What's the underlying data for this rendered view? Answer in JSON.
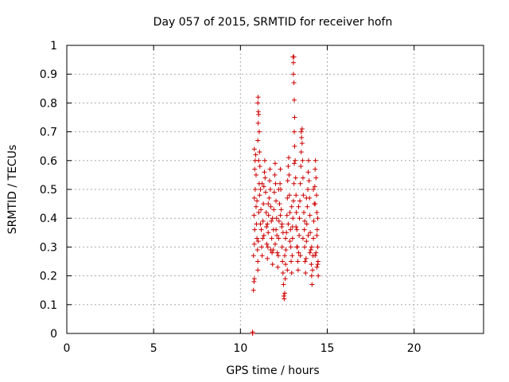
{
  "chart_data": {
    "type": "scatter",
    "title": "Day 057 of 2015, SRMTID for receiver hofn",
    "xlabel": "GPS time / hours",
    "ylabel": "SRMTID / TECUs",
    "xlim": [
      0,
      24
    ],
    "ylim": [
      0,
      1
    ],
    "xticks": [
      "0",
      "5",
      "10",
      "15",
      "20"
    ],
    "yticks": [
      "0",
      "0.1",
      "0.2",
      "0.3",
      "0.4",
      "0.5",
      "0.6",
      "0.7",
      "0.8",
      "0.9",
      "1"
    ],
    "grid": true,
    "marker": "+",
    "color": "#cc0000",
    "series": [
      {
        "points": [
          [
            10.7,
            0.0
          ],
          [
            10.7,
            0.005
          ],
          [
            10.75,
            0.15
          ],
          [
            10.78,
            0.18
          ],
          [
            10.8,
            0.19
          ],
          [
            10.75,
            0.27
          ],
          [
            10.8,
            0.31
          ],
          [
            10.82,
            0.36
          ],
          [
            10.78,
            0.41
          ],
          [
            10.8,
            0.47
          ],
          [
            10.82,
            0.57
          ],
          [
            10.85,
            0.6
          ],
          [
            10.8,
            0.64
          ],
          [
            10.88,
            0.62
          ],
          [
            10.9,
            0.55
          ],
          [
            10.85,
            0.5
          ],
          [
            10.9,
            0.44
          ],
          [
            10.92,
            0.38
          ],
          [
            10.95,
            0.33
          ],
          [
            10.98,
            0.29
          ],
          [
            11.0,
            0.25
          ],
          [
            11.0,
            0.22
          ],
          [
            11.02,
            0.32
          ],
          [
            11.05,
            0.42
          ],
          [
            11.08,
            0.52
          ],
          [
            11.1,
            0.48
          ],
          [
            11.05,
            0.6
          ],
          [
            11.0,
            0.67
          ],
          [
            11.02,
            0.73
          ],
          [
            11.03,
            0.77
          ],
          [
            11.0,
            0.8
          ],
          [
            11.02,
            0.82
          ],
          [
            11.05,
            0.76
          ],
          [
            11.08,
            0.7
          ],
          [
            11.1,
            0.63
          ],
          [
            11.12,
            0.58
          ],
          [
            11.15,
            0.5
          ],
          [
            11.18,
            0.43
          ],
          [
            11.2,
            0.36
          ],
          [
            11.22,
            0.3
          ],
          [
            11.25,
            0.27
          ],
          [
            11.28,
            0.33
          ],
          [
            11.3,
            0.39
          ],
          [
            11.32,
            0.45
          ],
          [
            11.35,
            0.51
          ],
          [
            11.38,
            0.56
          ],
          [
            11.4,
            0.6
          ],
          [
            11.42,
            0.54
          ],
          [
            11.45,
            0.49
          ],
          [
            11.48,
            0.42
          ],
          [
            11.5,
            0.37
          ],
          [
            11.52,
            0.31
          ],
          [
            11.55,
            0.26
          ],
          [
            11.58,
            0.3
          ],
          [
            11.6,
            0.35
          ],
          [
            11.62,
            0.41
          ],
          [
            11.65,
            0.47
          ],
          [
            11.68,
            0.53
          ],
          [
            11.7,
            0.57
          ],
          [
            11.72,
            0.5
          ],
          [
            11.75,
            0.44
          ],
          [
            11.78,
            0.39
          ],
          [
            11.8,
            0.33
          ],
          [
            11.82,
            0.28
          ],
          [
            11.85,
            0.24
          ],
          [
            11.88,
            0.29
          ],
          [
            11.9,
            0.36
          ],
          [
            11.92,
            0.43
          ],
          [
            11.95,
            0.49
          ],
          [
            11.98,
            0.55
          ],
          [
            12.0,
            0.59
          ],
          [
            12.02,
            0.52
          ],
          [
            12.05,
            0.46
          ],
          [
            12.08,
            0.4
          ],
          [
            12.1,
            0.34
          ],
          [
            12.12,
            0.28
          ],
          [
            12.15,
            0.23
          ],
          [
            12.18,
            0.27
          ],
          [
            12.2,
            0.33
          ],
          [
            12.22,
            0.39
          ],
          [
            12.25,
            0.45
          ],
          [
            12.28,
            0.52
          ],
          [
            12.3,
            0.57
          ],
          [
            12.32,
            0.5
          ],
          [
            12.35,
            0.43
          ],
          [
            12.38,
            0.37
          ],
          [
            12.4,
            0.3
          ],
          [
            12.42,
            0.25
          ],
          [
            12.45,
            0.21
          ],
          [
            12.48,
            0.17
          ],
          [
            12.5,
            0.13
          ],
          [
            12.52,
            0.12
          ],
          [
            12.55,
            0.14
          ],
          [
            12.58,
            0.19
          ],
          [
            12.6,
            0.24
          ],
          [
            12.62,
            0.29
          ],
          [
            12.65,
            0.35
          ],
          [
            12.68,
            0.41
          ],
          [
            12.7,
            0.47
          ],
          [
            12.72,
            0.53
          ],
          [
            12.75,
            0.58
          ],
          [
            12.78,
            0.61
          ],
          [
            12.8,
            0.55
          ],
          [
            12.82,
            0.48
          ],
          [
            12.85,
            0.42
          ],
          [
            12.88,
            0.36
          ],
          [
            12.9,
            0.3
          ],
          [
            12.92,
            0.25
          ],
          [
            12.95,
            0.21
          ],
          [
            12.98,
            0.27
          ],
          [
            13.0,
            0.33
          ],
          [
            13.02,
            0.4
          ],
          [
            13.05,
            0.46
          ],
          [
            13.08,
            0.52
          ],
          [
            13.1,
            0.59
          ],
          [
            13.12,
            0.65
          ],
          [
            13.1,
            0.7
          ],
          [
            13.12,
            0.75
          ],
          [
            13.1,
            0.81
          ],
          [
            13.08,
            0.87
          ],
          [
            13.05,
            0.9
          ],
          [
            13.05,
            0.94
          ],
          [
            13.08,
            0.96
          ],
          [
            13.02,
            0.96
          ],
          [
            13.15,
            0.6
          ],
          [
            13.18,
            0.54
          ],
          [
            13.2,
            0.48
          ],
          [
            13.22,
            0.42
          ],
          [
            13.25,
            0.36
          ],
          [
            13.28,
            0.3
          ],
          [
            13.3,
            0.25
          ],
          [
            13.32,
            0.22
          ],
          [
            13.35,
            0.28
          ],
          [
            13.38,
            0.34
          ],
          [
            13.4,
            0.4
          ],
          [
            13.42,
            0.46
          ],
          [
            13.45,
            0.52
          ],
          [
            13.48,
            0.58
          ],
          [
            13.5,
            0.63
          ],
          [
            13.52,
            0.68
          ],
          [
            13.5,
            0.7
          ],
          [
            13.55,
            0.71
          ],
          [
            13.55,
            0.66
          ],
          [
            13.58,
            0.6
          ],
          [
            13.6,
            0.54
          ],
          [
            13.62,
            0.48
          ],
          [
            13.65,
            0.42
          ],
          [
            13.68,
            0.36
          ],
          [
            13.7,
            0.3
          ],
          [
            13.72,
            0.25
          ],
          [
            13.75,
            0.21
          ],
          [
            13.78,
            0.26
          ],
          [
            13.8,
            0.32
          ],
          [
            13.82,
            0.38
          ],
          [
            13.85,
            0.44
          ],
          [
            13.88,
            0.5
          ],
          [
            13.9,
            0.56
          ],
          [
            13.92,
            0.6
          ],
          [
            13.95,
            0.53
          ],
          [
            13.98,
            0.47
          ],
          [
            14.0,
            0.41
          ],
          [
            14.02,
            0.35
          ],
          [
            14.05,
            0.29
          ],
          [
            14.08,
            0.24
          ],
          [
            14.1,
            0.2
          ],
          [
            14.12,
            0.17
          ],
          [
            14.15,
            0.22
          ],
          [
            14.18,
            0.27
          ],
          [
            14.2,
            0.33
          ],
          [
            14.22,
            0.39
          ],
          [
            14.25,
            0.45
          ],
          [
            14.28,
            0.51
          ],
          [
            14.3,
            0.57
          ],
          [
            14.32,
            0.6
          ],
          [
            14.35,
            0.54
          ],
          [
            14.38,
            0.48
          ],
          [
            14.4,
            0.42
          ],
          [
            14.42,
            0.36
          ],
          [
            14.45,
            0.3
          ],
          [
            14.47,
            0.25
          ],
          [
            14.48,
            0.2
          ],
          [
            14.45,
            0.24
          ],
          [
            14.4,
            0.23
          ],
          [
            14.35,
            0.28
          ],
          [
            11.15,
            0.38
          ],
          [
            11.35,
            0.34
          ],
          [
            11.6,
            0.45
          ],
          [
            11.85,
            0.4
          ],
          [
            12.05,
            0.36
          ],
          [
            12.3,
            0.41
          ],
          [
            12.45,
            0.35
          ],
          [
            12.6,
            0.33
          ],
          [
            12.75,
            0.38
          ],
          [
            12.95,
            0.44
          ],
          [
            13.25,
            0.3
          ],
          [
            13.45,
            0.27
          ],
          [
            13.7,
            0.39
          ],
          [
            13.9,
            0.34
          ],
          [
            14.1,
            0.3
          ],
          [
            14.3,
            0.27
          ],
          [
            10.95,
            0.46
          ],
          [
            11.25,
            0.52
          ],
          [
            11.55,
            0.38
          ],
          [
            11.75,
            0.29
          ],
          [
            12.0,
            0.31
          ],
          [
            12.2,
            0.5
          ],
          [
            12.4,
            0.38
          ],
          [
            12.55,
            0.27
          ],
          [
            12.7,
            0.22
          ],
          [
            12.85,
            0.32
          ],
          [
            13.0,
            0.37
          ],
          [
            13.2,
            0.37
          ],
          [
            13.35,
            0.44
          ],
          [
            13.6,
            0.33
          ],
          [
            13.8,
            0.47
          ],
          [
            14.0,
            0.28
          ],
          [
            14.2,
            0.5
          ],
          [
            14.4,
            0.34
          ],
          [
            14.45,
            0.4
          ],
          [
            14.3,
            0.45
          ]
        ]
      }
    ]
  }
}
